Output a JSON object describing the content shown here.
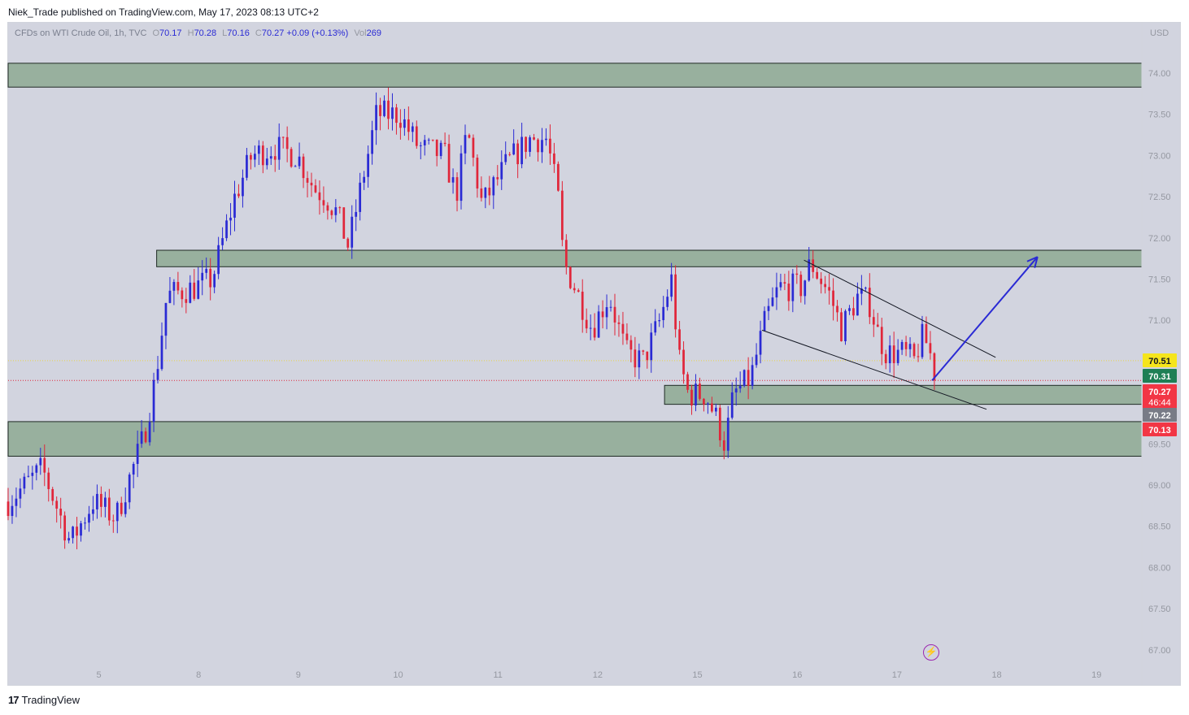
{
  "header": {
    "text": "Niek_Trade published on TradingView.com, May 17, 2023 08:13 UTC+2"
  },
  "legend": {
    "symbol": "CFDs on WTI Crude Oil, 1h, TVC",
    "open_label": "O",
    "open": "70.17",
    "high_label": "H",
    "high": "70.28",
    "low_label": "L",
    "low": "70.16",
    "close_label": "C",
    "close": "70.27",
    "change": "+0.09 (+0.13%)",
    "vol_label": "Vol",
    "vol": "269"
  },
  "currency": "USD",
  "footer": {
    "logo": "17",
    "brand": "TradingView"
  },
  "flash_icon": "lightning-icon",
  "chart_data": {
    "type": "candlestick",
    "timeframe": "1h",
    "ylim": [
      66.8,
      74.4
    ],
    "y_ticks": [
      "74.00",
      "73.50",
      "73.00",
      "72.50",
      "72.00",
      "71.50",
      "71.00",
      "70.50",
      "70.00",
      "69.50",
      "69.00",
      "68.50",
      "68.00",
      "67.50",
      "67.00"
    ],
    "x_ticks": [
      "5",
      "8",
      "9",
      "10",
      "11",
      "12",
      "15",
      "16",
      "17",
      "18",
      "19"
    ],
    "x_tick_positions": [
      0.08,
      0.168,
      0.256,
      0.344,
      0.432,
      0.52,
      0.608,
      0.696,
      0.784,
      0.872,
      0.96
    ],
    "colors": {
      "up": "#2a2ad4",
      "down": "#e0263a",
      "zone": "#98b09e",
      "arrow": "#2a2ad4"
    },
    "price_labels": [
      {
        "value": "70.51",
        "bg": "#f5e51c",
        "fg": "#131722"
      },
      {
        "value": "70.31",
        "bg": "#1e7f55",
        "fg": "#ffffff"
      },
      {
        "value": "70.27",
        "sub": "46:44",
        "bg": "#f23645",
        "fg": "#ffffff"
      },
      {
        "value": "70.22",
        "bg": "#787b86",
        "fg": "#ffffff"
      },
      {
        "value": "70.13",
        "bg": "#f23645",
        "fg": "#ffffff"
      }
    ],
    "zones": [
      {
        "top": 74.12,
        "bottom": 73.83,
        "x0": 0.0,
        "x1": 1.0
      },
      {
        "top": 71.85,
        "bottom": 71.65,
        "x0": 0.131,
        "x1": 1.0
      },
      {
        "top": 70.21,
        "bottom": 69.98,
        "x0": 0.579,
        "x1": 1.0
      },
      {
        "top": 69.77,
        "bottom": 69.35,
        "x0": 0.0,
        "x1": 1.0
      }
    ],
    "channel": [
      {
        "x0": 0.702,
        "y0": 71.73,
        "x1": 0.871,
        "y1": 70.55
      },
      {
        "x0": 0.665,
        "y0": 70.88,
        "x1": 0.863,
        "y1": 69.92
      }
    ],
    "arrow": {
      "x0": 0.815,
      "y0": 70.27,
      "x1": 0.908,
      "y1": 71.77
    },
    "anchors": [
      [
        0.0,
        68.8
      ],
      [
        0.03,
        69.2
      ],
      [
        0.055,
        68.3
      ],
      [
        0.075,
        68.8
      ],
      [
        0.095,
        68.6
      ],
      [
        0.12,
        69.6
      ],
      [
        0.13,
        70.3
      ],
      [
        0.14,
        71.3
      ],
      [
        0.165,
        71.4
      ],
      [
        0.18,
        71.5
      ],
      [
        0.2,
        72.5
      ],
      [
        0.215,
        73.0
      ],
      [
        0.235,
        73.1
      ],
      [
        0.255,
        73.0
      ],
      [
        0.27,
        72.6
      ],
      [
        0.28,
        72.5
      ],
      [
        0.29,
        72.3
      ],
      [
        0.3,
        71.9
      ],
      [
        0.325,
        73.5
      ],
      [
        0.345,
        73.5
      ],
      [
        0.362,
        73.1
      ],
      [
        0.385,
        73.0
      ],
      [
        0.395,
        72.5
      ],
      [
        0.405,
        73.3
      ],
      [
        0.418,
        72.4
      ],
      [
        0.44,
        72.9
      ],
      [
        0.46,
        73.2
      ],
      [
        0.475,
        73.2
      ],
      [
        0.485,
        72.5
      ],
      [
        0.49,
        71.7
      ],
      [
        0.5,
        71.4
      ],
      [
        0.515,
        70.9
      ],
      [
        0.53,
        71.3
      ],
      [
        0.545,
        70.6
      ],
      [
        0.56,
        70.5
      ],
      [
        0.575,
        71.0
      ],
      [
        0.585,
        71.5
      ],
      [
        0.592,
        70.5
      ],
      [
        0.6,
        70.1
      ],
      [
        0.615,
        70.1
      ],
      [
        0.625,
        69.8
      ],
      [
        0.632,
        69.5
      ],
      [
        0.64,
        70.1
      ],
      [
        0.655,
        70.3
      ],
      [
        0.668,
        71.0
      ],
      [
        0.68,
        71.4
      ],
      [
        0.7,
        71.4
      ],
      [
        0.708,
        71.7
      ],
      [
        0.725,
        71.3
      ],
      [
        0.735,
        70.9
      ],
      [
        0.75,
        71.3
      ],
      [
        0.76,
        71.2
      ],
      [
        0.768,
        70.8
      ],
      [
        0.775,
        70.6
      ],
      [
        0.79,
        70.6
      ],
      [
        0.8,
        70.5
      ],
      [
        0.805,
        70.8
      ],
      [
        0.812,
        70.7
      ],
      [
        0.817,
        70.3
      ]
    ]
  }
}
